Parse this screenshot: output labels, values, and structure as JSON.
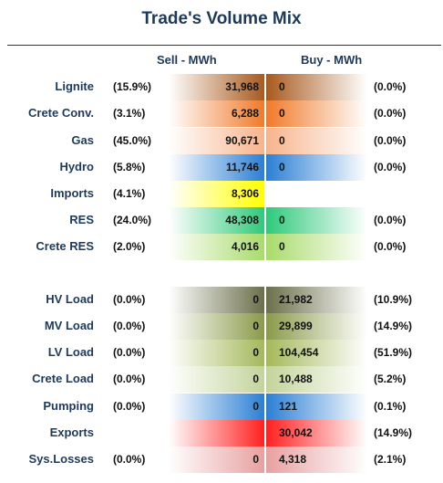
{
  "title": "Trade's Volume Mix",
  "headers": {
    "sell": "Sell - MWh",
    "buy": "Buy - MWh"
  },
  "rows": [
    {
      "label": "Lignite",
      "sell_pct": "(15.9%)",
      "sell": "31,968",
      "buy": "0",
      "buy_pct": "(0.0%)",
      "color": "#a85a1e"
    },
    {
      "label": "Crete Conv.",
      "sell_pct": "(3.1%)",
      "sell": "6,288",
      "buy": "0",
      "buy_pct": "(0.0%)",
      "color": "#f07a2a"
    },
    {
      "label": "Gas",
      "sell_pct": "(45.0%)",
      "sell": "90,671",
      "buy": "0",
      "buy_pct": "(0.0%)",
      "color": "#f7b48c"
    },
    {
      "label": "Hydro",
      "sell_pct": "(5.8%)",
      "sell": "11,746",
      "buy": "0",
      "buy_pct": "(0.0%)",
      "color": "#2b7fd4"
    },
    {
      "label": "Imports",
      "sell_pct": "(4.1%)",
      "sell": "8,306",
      "buy": "",
      "buy_pct": "",
      "color": "#ffff00"
    },
    {
      "label": "RES",
      "sell_pct": "(24.0%)",
      "sell": "48,308",
      "buy": "0",
      "buy_pct": "(0.0%)",
      "color": "#2ec97a"
    },
    {
      "label": "Crete RES",
      "sell_pct": "(2.0%)",
      "sell": "4,016",
      "buy": "0",
      "buy_pct": "(0.0%)",
      "color": "#a8db6a"
    },
    {
      "label": "HV Load",
      "sell_pct": "(0.0%)",
      "sell": "0",
      "buy": "21,982",
      "buy_pct": "(10.9%)",
      "color": "#6b6f4a"
    },
    {
      "label": "MV Load",
      "sell_pct": "(0.0%)",
      "sell": "0",
      "buy": "29,899",
      "buy_pct": "(14.9%)",
      "color": "#8a9a4a"
    },
    {
      "label": "LV Load",
      "sell_pct": "(0.0%)",
      "sell": "0",
      "buy": "104,454",
      "buy_pct": "(51.9%)",
      "color": "#a4b85a"
    },
    {
      "label": "Crete Load",
      "sell_pct": "(0.0%)",
      "sell": "0",
      "buy": "10,488",
      "buy_pct": "(5.2%)",
      "color": "#c3d49a"
    },
    {
      "label": "Pumping",
      "sell_pct": "(0.0%)",
      "sell": "0",
      "buy": "121",
      "buy_pct": "(0.1%)",
      "color": "#2b7fd4"
    },
    {
      "label": "Exports",
      "sell_pct": "",
      "sell": "",
      "buy": "30,042",
      "buy_pct": "(14.9%)",
      "color": "#ff2020"
    },
    {
      "label": "Sys.Losses",
      "sell_pct": "(0.0%)",
      "sell": "0",
      "buy": "4,318",
      "buy_pct": "(2.1%)",
      "color": "#e8a0a0"
    }
  ]
}
